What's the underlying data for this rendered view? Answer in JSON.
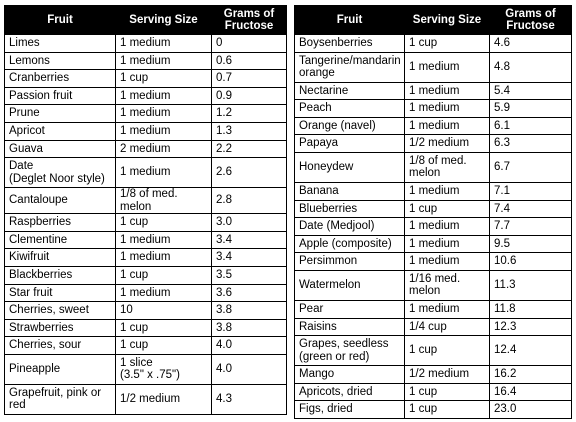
{
  "header": {
    "fruit": "Fruit",
    "serving": "Serving Size",
    "grams": "Grams of Fructose"
  },
  "left_rows": [
    {
      "fruit": "Limes",
      "serving": "1 medium",
      "grams": "0"
    },
    {
      "fruit": "Lemons",
      "serving": "1 medium",
      "grams": "0.6"
    },
    {
      "fruit": "Cranberries",
      "serving": "1 cup",
      "grams": "0.7"
    },
    {
      "fruit": "Passion fruit",
      "serving": "1 medium",
      "grams": "0.9"
    },
    {
      "fruit": "Prune",
      "serving": "1 medium",
      "grams": "1.2"
    },
    {
      "fruit": "Apricot",
      "serving": "1 medium",
      "grams": "1.3"
    },
    {
      "fruit": "Guava",
      "serving": "2 medium",
      "grams": "2.2"
    },
    {
      "fruit": "Date\n(Deglet Noor style)",
      "serving": "1 medium",
      "grams": "2.6"
    },
    {
      "fruit": "Cantaloupe",
      "serving": "1/8 of med. melon",
      "grams": "2.8"
    },
    {
      "fruit": "Raspberries",
      "serving": "1 cup",
      "grams": "3.0"
    },
    {
      "fruit": "Clementine",
      "serving": "1 medium",
      "grams": "3.4"
    },
    {
      "fruit": "Kiwifruit",
      "serving": "1 medium",
      "grams": "3.4"
    },
    {
      "fruit": "Blackberries",
      "serving": "1 cup",
      "grams": "3.5"
    },
    {
      "fruit": "Star fruit",
      "serving": "1 medium",
      "grams": "3.6"
    },
    {
      "fruit": "Cherries, sweet",
      "serving": "10",
      "grams": "3.8"
    },
    {
      "fruit": "Strawberries",
      "serving": "1 cup",
      "grams": "3.8"
    },
    {
      "fruit": "Cherries, sour",
      "serving": "1 cup",
      "grams": "4.0"
    },
    {
      "fruit": "Pineapple",
      "serving": "1 slice\n(3.5\" x .75\")",
      "grams": "4.0"
    },
    {
      "fruit": "Grapefruit, pink or\nred",
      "serving": "1/2 medium",
      "grams": "4.3"
    }
  ],
  "right_rows": [
    {
      "fruit": "Boysenberries",
      "serving": "1 cup",
      "grams": "4.6"
    },
    {
      "fruit": "Tangerine/mandarin\norange",
      "serving": "1 medium",
      "grams": "4.8"
    },
    {
      "fruit": "Nectarine",
      "serving": "1 medium",
      "grams": "5.4"
    },
    {
      "fruit": "Peach",
      "serving": "1 medium",
      "grams": "5.9"
    },
    {
      "fruit": "Orange (navel)",
      "serving": "1 medium",
      "grams": "6.1"
    },
    {
      "fruit": "Papaya",
      "serving": "1/2 medium",
      "grams": "6.3"
    },
    {
      "fruit": "Honeydew",
      "serving": "1/8 of med.\nmelon",
      "grams": "6.7"
    },
    {
      "fruit": "Banana",
      "serving": "1 medium",
      "grams": "7.1"
    },
    {
      "fruit": "Blueberries",
      "serving": "1 cup",
      "grams": "7.4"
    },
    {
      "fruit": "Date (Medjool)",
      "serving": "1 medium",
      "grams": "7.7"
    },
    {
      "fruit": "Apple (composite)",
      "serving": "1 medium",
      "grams": "9.5"
    },
    {
      "fruit": "Persimmon",
      "serving": "1 medium",
      "grams": "10.6"
    },
    {
      "fruit": "Watermelon",
      "serving": "1/16 med.\nmelon",
      "grams": "11.3"
    },
    {
      "fruit": "Pear",
      "serving": "1 medium",
      "grams": "11.8"
    },
    {
      "fruit": "Raisins",
      "serving": "1/4 cup",
      "grams": "12.3"
    },
    {
      "fruit": "Grapes, seedless\n(green or red)",
      "serving": "1 cup",
      "grams": "12.4"
    },
    {
      "fruit": "Mango",
      "serving": "1/2 medium",
      "grams": "16.2"
    },
    {
      "fruit": "Apricots, dried",
      "serving": "1 cup",
      "grams": "16.4"
    },
    {
      "fruit": "Figs, dried",
      "serving": "1 cup",
      "grams": "23.0"
    }
  ]
}
